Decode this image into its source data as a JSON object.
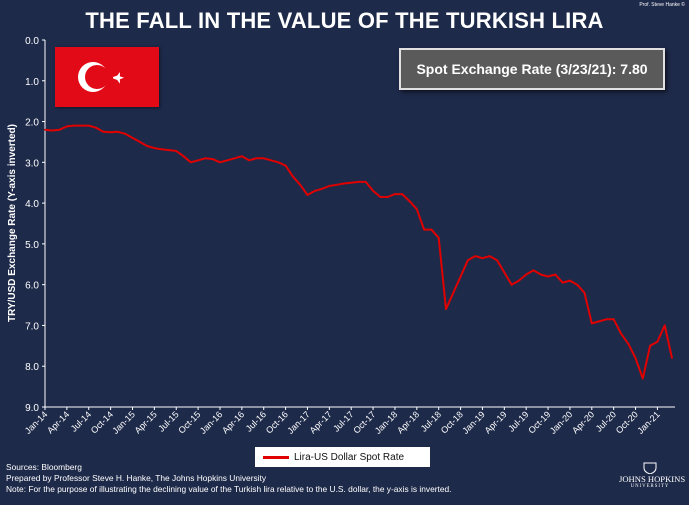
{
  "header": {
    "title": "THE FALL IN THE VALUE OF THE TURKISH LIRA",
    "credit": "Prof. Steve Hanke ©"
  },
  "spot_box": {
    "label": "Spot Exchange Rate (3/23/21): 7.80"
  },
  "flag": {
    "icon": "turkish-flag-icon",
    "color": "#e30a17"
  },
  "legend": {
    "label": "Lira-US Dollar Spot Rate",
    "color": "#e00000"
  },
  "notes": [
    "Sources: Bloomberg",
    "Prepared by Professor Steve H. Hanke, The Johns Hopkins University",
    "Note: For the purpose of illustrating the declining value of the Turkish lira relative to the U.S. dollar, the y-axis is inverted."
  ],
  "logo": {
    "name": "JOHNS HOPKINS",
    "sub": "UNIVERSITY",
    "icon": "jhu-shield-icon"
  },
  "chart_data": {
    "type": "line",
    "ylabel": "TRY/USD Exchange Rate (Y-axis inverted)",
    "ylim": [
      0,
      9
    ],
    "y_inverted": true,
    "y_ticks": [
      "0.0",
      "1.0",
      "2.0",
      "3.0",
      "4.0",
      "5.0",
      "6.0",
      "7.0",
      "8.0",
      "9.0"
    ],
    "x_range": [
      "2014-01",
      "2021-03"
    ],
    "x_ticks": [
      "Jan-14",
      "Apr-14",
      "Jul-14",
      "Oct-14",
      "Jan-15",
      "Apr-15",
      "Jul-15",
      "Oct-15",
      "Jan-16",
      "Apr-16",
      "Jul-16",
      "Oct-16",
      "Jan-17",
      "Apr-17",
      "Jul-17",
      "Oct-17",
      "Jan-18",
      "Apr-18",
      "Jul-18",
      "Oct-18",
      "Jan-19",
      "Apr-19",
      "Jul-19",
      "Oct-19",
      "Jan-20",
      "Apr-20",
      "Jul-20",
      "Oct-20",
      "Jan-21"
    ],
    "grid": false,
    "legend_position": "bottom-center",
    "colors": {
      "background": "#1e2a4a",
      "line": "#e00000"
    },
    "series": [
      {
        "name": "Lira-US Dollar Spot Rate",
        "x": [
          "2014-01",
          "2014-02",
          "2014-03",
          "2014-04",
          "2014-05",
          "2014-06",
          "2014-07",
          "2014-08",
          "2014-09",
          "2014-10",
          "2014-11",
          "2014-12",
          "2015-01",
          "2015-02",
          "2015-03",
          "2015-04",
          "2015-05",
          "2015-06",
          "2015-07",
          "2015-08",
          "2015-09",
          "2015-10",
          "2015-11",
          "2015-12",
          "2016-01",
          "2016-02",
          "2016-03",
          "2016-04",
          "2016-05",
          "2016-06",
          "2016-07",
          "2016-08",
          "2016-09",
          "2016-10",
          "2016-11",
          "2016-12",
          "2017-01",
          "2017-02",
          "2017-03",
          "2017-04",
          "2017-05",
          "2017-06",
          "2017-07",
          "2017-08",
          "2017-09",
          "2017-10",
          "2017-11",
          "2017-12",
          "2018-01",
          "2018-02",
          "2018-03",
          "2018-04",
          "2018-05",
          "2018-06",
          "2018-07",
          "2018-08",
          "2018-09",
          "2018-10",
          "2018-11",
          "2018-12",
          "2019-01",
          "2019-02",
          "2019-03",
          "2019-04",
          "2019-05",
          "2019-06",
          "2019-07",
          "2019-08",
          "2019-09",
          "2019-10",
          "2019-11",
          "2019-12",
          "2020-01",
          "2020-02",
          "2020-03",
          "2020-04",
          "2020-05",
          "2020-06",
          "2020-07",
          "2020-08",
          "2020-09",
          "2020-10",
          "2020-11",
          "2020-12",
          "2021-01",
          "2021-02",
          "2021-03"
        ],
        "values": [
          2.2,
          2.22,
          2.2,
          2.12,
          2.1,
          2.1,
          2.1,
          2.15,
          2.25,
          2.26,
          2.25,
          2.3,
          2.4,
          2.5,
          2.6,
          2.65,
          2.68,
          2.7,
          2.72,
          2.85,
          3.0,
          2.95,
          2.9,
          2.92,
          3.0,
          2.95,
          2.9,
          2.85,
          2.95,
          2.9,
          2.9,
          2.95,
          3.0,
          3.08,
          3.35,
          3.55,
          3.8,
          3.7,
          3.65,
          3.58,
          3.55,
          3.52,
          3.5,
          3.48,
          3.48,
          3.7,
          3.85,
          3.85,
          3.78,
          3.78,
          3.95,
          4.15,
          4.65,
          4.65,
          4.85,
          6.6,
          6.2,
          5.8,
          5.4,
          5.3,
          5.35,
          5.3,
          5.4,
          5.7,
          6.0,
          5.9,
          5.75,
          5.65,
          5.75,
          5.8,
          5.75,
          5.95,
          5.9,
          6.0,
          6.2,
          6.95,
          6.9,
          6.85,
          6.85,
          7.2,
          7.45,
          7.8,
          8.3,
          7.5,
          7.4,
          7.0,
          7.8
        ]
      }
    ]
  }
}
